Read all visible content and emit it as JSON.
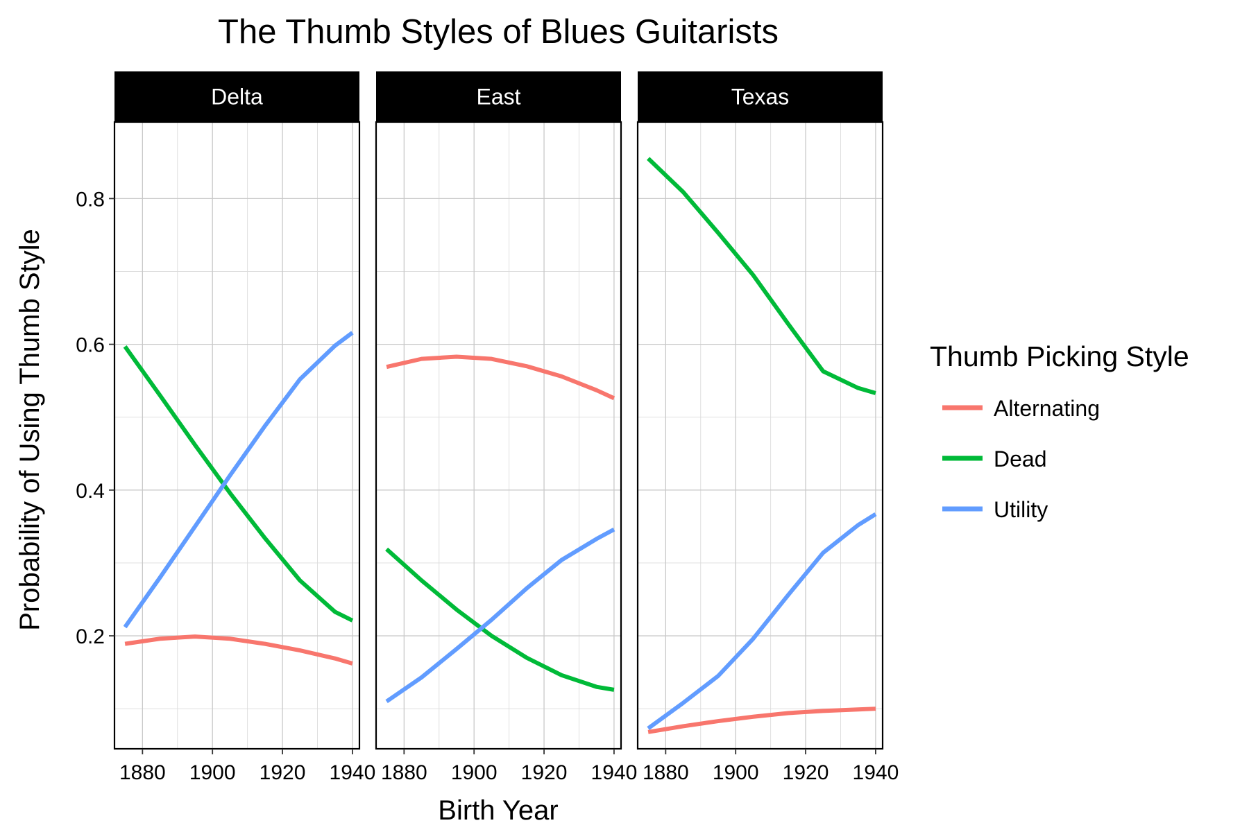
{
  "chart_data": {
    "type": "line",
    "title": "The Thumb Styles of Blues Guitarists",
    "xlabel": "Birth Year",
    "ylabel": "Probability of Using Thumb Style",
    "xlim": [
      1872,
      1942
    ],
    "ylim": [
      0.045,
      0.905
    ],
    "x_ticks": [
      1880,
      1900,
      1920,
      1940
    ],
    "y_ticks": [
      0.2,
      0.4,
      0.6,
      0.8
    ],
    "grid": true,
    "legend_position": "right",
    "legend": {
      "title": "Thumb Picking Style",
      "items": [
        {
          "name": "Alternating",
          "color": "#F8766D"
        },
        {
          "name": "Dead",
          "color": "#00BA38"
        },
        {
          "name": "Utility",
          "color": "#619CFF"
        }
      ]
    },
    "x": [
      1875,
      1885,
      1895,
      1905,
      1915,
      1925,
      1935,
      1940
    ],
    "panels": [
      {
        "label": "Delta",
        "series": [
          {
            "name": "Alternating",
            "values": [
              0.189,
              0.196,
              0.199,
              0.196,
              0.189,
              0.18,
              0.169,
              0.162
            ]
          },
          {
            "name": "Dead",
            "values": [
              0.597,
              0.53,
              0.462,
              0.396,
              0.334,
              0.276,
              0.233,
              0.221
            ]
          },
          {
            "name": "Utility",
            "values": [
              0.212,
              0.28,
              0.35,
              0.42,
              0.488,
              0.552,
              0.598,
              0.616
            ]
          }
        ]
      },
      {
        "label": "East",
        "series": [
          {
            "name": "Alternating",
            "values": [
              0.569,
              0.58,
              0.583,
              0.58,
              0.57,
              0.556,
              0.537,
              0.526
            ]
          },
          {
            "name": "Dead",
            "values": [
              0.319,
              0.276,
              0.236,
              0.2,
              0.17,
              0.146,
              0.13,
              0.126
            ]
          },
          {
            "name": "Utility",
            "values": [
              0.11,
              0.143,
              0.182,
              0.222,
              0.265,
              0.304,
              0.333,
              0.346
            ]
          }
        ]
      },
      {
        "label": "Texas",
        "series": [
          {
            "name": "Alternating",
            "values": [
              0.068,
              0.076,
              0.083,
              0.089,
              0.094,
              0.097,
              0.099,
              0.1
            ]
          },
          {
            "name": "Dead",
            "values": [
              0.855,
              0.809,
              0.753,
              0.695,
              0.628,
              0.563,
              0.54,
              0.533
            ]
          },
          {
            "name": "Utility",
            "values": [
              0.073,
              0.108,
              0.145,
              0.196,
              0.256,
              0.314,
              0.352,
              0.367
            ]
          }
        ]
      }
    ]
  }
}
